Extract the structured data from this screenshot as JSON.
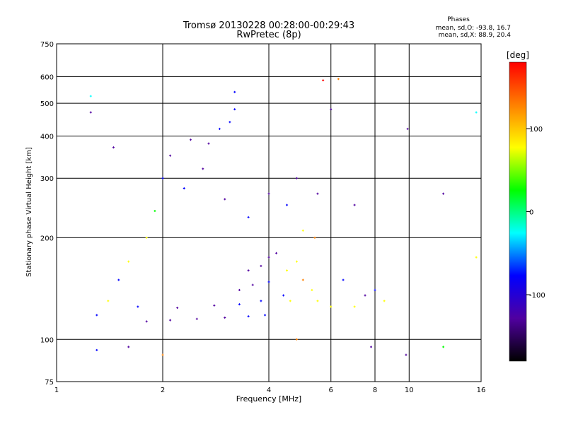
{
  "chart_data": {
    "type": "scatter",
    "title": "Tromsø 20130228 00:28:00-00:29:43",
    "subtitle": "RwPretec (8p)",
    "xlabel": "Frequency [MHz]",
    "ylabel": "Stationary phase Virtual Height [km]",
    "x_scale": "log",
    "y_scale": "log",
    "xlim": [
      1,
      16
    ],
    "ylim": [
      75,
      750
    ],
    "x_ticks": [
      "1",
      "2",
      "4",
      "6",
      "8",
      "10",
      "16"
    ],
    "y_ticks": [
      "75",
      "100",
      "200",
      "300",
      "400",
      "500",
      "600",
      "750"
    ],
    "grid": true,
    "phase_info": {
      "title": "Phases",
      "line_o": "mean, sd,O:  -93.8, 16.7",
      "line_x": "mean, sd,X:  88.9, 20.4"
    },
    "colorbar": {
      "label": "[deg]",
      "range": [
        -180,
        180
      ],
      "ticks": [
        "100",
        "0",
        "-100"
      ],
      "colors": [
        "#ff0000",
        "#ff8000",
        "#ffff00",
        "#00ff00",
        "#00ffff",
        "#0000ff",
        "#5000a0",
        "#000000"
      ]
    },
    "series": [
      {
        "values": [
          {
            "x": 1.8,
            "y": 113,
            "deg": -110
          },
          {
            "x": 2.1,
            "y": 114,
            "deg": -115
          },
          {
            "x": 2.5,
            "y": 115,
            "deg": -105
          },
          {
            "x": 3.0,
            "y": 116,
            "deg": -110
          },
          {
            "x": 3.5,
            "y": 117,
            "deg": -100
          },
          {
            "x": 3.9,
            "y": 118,
            "deg": -95
          },
          {
            "x": 1.7,
            "y": 125,
            "deg": -100
          },
          {
            "x": 2.2,
            "y": 124,
            "deg": -105
          },
          {
            "x": 2.8,
            "y": 126,
            "deg": -110
          },
          {
            "x": 3.3,
            "y": 127,
            "deg": -100
          },
          {
            "x": 3.8,
            "y": 130,
            "deg": -95
          },
          {
            "x": 4.4,
            "y": 135,
            "deg": -90
          },
          {
            "x": 3.3,
            "y": 140,
            "deg": -120
          },
          {
            "x": 3.6,
            "y": 145,
            "deg": -110
          },
          {
            "x": 4.0,
            "y": 148,
            "deg": -100
          },
          {
            "x": 3.5,
            "y": 160,
            "deg": -140
          },
          {
            "x": 3.8,
            "y": 165,
            "deg": -130
          },
          {
            "x": 4.0,
            "y": 175,
            "deg": -120
          },
          {
            "x": 4.2,
            "y": 180,
            "deg": -110
          },
          {
            "x": 4.5,
            "y": 160,
            "deg": 60
          },
          {
            "x": 4.8,
            "y": 170,
            "deg": 90
          },
          {
            "x": 5.0,
            "y": 150,
            "deg": 110
          },
          {
            "x": 5.3,
            "y": 140,
            "deg": 80
          },
          {
            "x": 4.6,
            "y": 130,
            "deg": 95
          },
          {
            "x": 5.5,
            "y": 130,
            "deg": 100
          },
          {
            "x": 6.0,
            "y": 125,
            "deg": 85
          },
          {
            "x": 5.0,
            "y": 210,
            "deg": 100
          },
          {
            "x": 5.4,
            "y": 200,
            "deg": 120
          },
          {
            "x": 7.0,
            "y": 125,
            "deg": 95
          },
          {
            "x": 7.5,
            "y": 135,
            "deg": -110
          },
          {
            "x": 8.0,
            "y": 140,
            "deg": -90
          },
          {
            "x": 8.5,
            "y": 130,
            "deg": 100
          },
          {
            "x": 6.5,
            "y": 150,
            "deg": -100
          },
          {
            "x": 1.8,
            "y": 200,
            "deg": 60
          },
          {
            "x": 1.9,
            "y": 240,
            "deg": 20
          },
          {
            "x": 2.0,
            "y": 300,
            "deg": -100
          },
          {
            "x": 2.1,
            "y": 350,
            "deg": -110
          },
          {
            "x": 2.3,
            "y": 280,
            "deg": -95
          },
          {
            "x": 2.4,
            "y": 390,
            "deg": -120
          },
          {
            "x": 2.6,
            "y": 320,
            "deg": -105
          },
          {
            "x": 2.7,
            "y": 380,
            "deg": -110
          },
          {
            "x": 2.9,
            "y": 420,
            "deg": -100
          },
          {
            "x": 3.1,
            "y": 440,
            "deg": -95
          },
          {
            "x": 3.2,
            "y": 480,
            "deg": -100
          },
          {
            "x": 3.2,
            "y": 540,
            "deg": -90
          },
          {
            "x": 3.0,
            "y": 260,
            "deg": -110
          },
          {
            "x": 3.5,
            "y": 230,
            "deg": -100
          },
          {
            "x": 4.0,
            "y": 270,
            "deg": -110
          },
          {
            "x": 4.5,
            "y": 250,
            "deg": -100
          },
          {
            "x": 4.8,
            "y": 300,
            "deg": -115
          },
          {
            "x": 5.5,
            "y": 270,
            "deg": -120
          },
          {
            "x": 7.0,
            "y": 250,
            "deg": -105
          },
          {
            "x": 1.4,
            "y": 130,
            "deg": 100
          },
          {
            "x": 1.5,
            "y": 150,
            "deg": -100
          },
          {
            "x": 1.6,
            "y": 170,
            "deg": 90
          },
          {
            "x": 1.3,
            "y": 118,
            "deg": -100
          },
          {
            "x": 1.25,
            "y": 470,
            "deg": -110
          },
          {
            "x": 1.25,
            "y": 525,
            "deg": -10
          },
          {
            "x": 1.45,
            "y": 370,
            "deg": -110
          },
          {
            "x": 2.0,
            "y": 90,
            "deg": 110
          },
          {
            "x": 1.6,
            "y": 95,
            "deg": -110
          },
          {
            "x": 1.3,
            "y": 93,
            "deg": -100
          },
          {
            "x": 6.3,
            "y": 590,
            "deg": 120
          },
          {
            "x": 5.7,
            "y": 585,
            "deg": 160
          },
          {
            "x": 6.0,
            "y": 480,
            "deg": -110
          },
          {
            "x": 9.9,
            "y": 420,
            "deg": -110
          },
          {
            "x": 12.5,
            "y": 270,
            "deg": -110
          },
          {
            "x": 15.5,
            "y": 470,
            "deg": -10
          },
          {
            "x": 15.5,
            "y": 175,
            "deg": 100
          },
          {
            "x": 12.5,
            "y": 95,
            "deg": 30
          },
          {
            "x": 9.8,
            "y": 90,
            "deg": -110
          },
          {
            "x": 7.8,
            "y": 95,
            "deg": -120
          },
          {
            "x": 4.8,
            "y": 100,
            "deg": 110
          }
        ]
      }
    ]
  }
}
